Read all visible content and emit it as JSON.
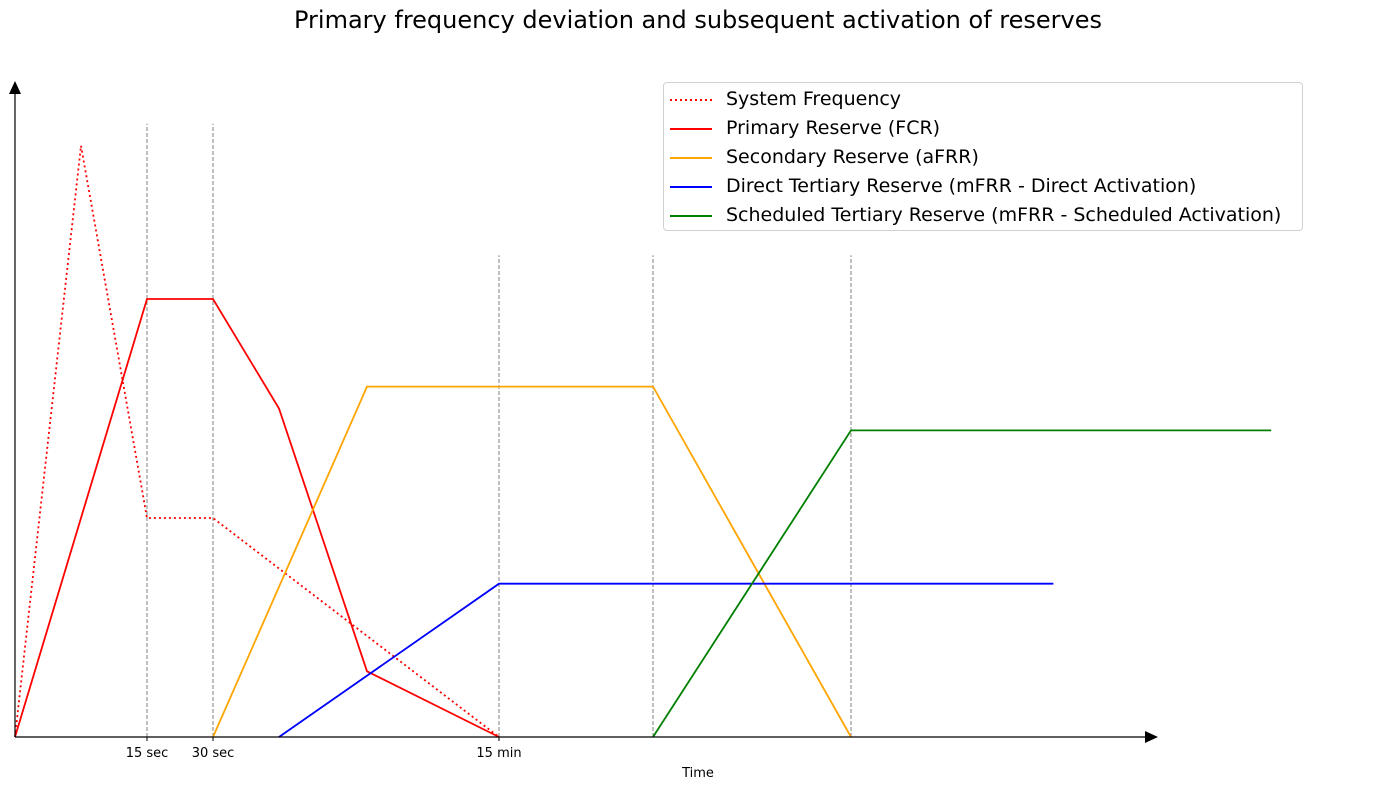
{
  "chart_data": {
    "type": "line",
    "title": "Primary frequency deviation and subsequent activation of reserves",
    "xlabel": "Time",
    "ylabel": "",
    "xlim": [
      0,
      26
    ],
    "ylim": [
      0,
      14.5
    ],
    "x_ticks": [
      {
        "x": 3,
        "label": "15 sec"
      },
      {
        "x": 4.5,
        "label": "30 sec"
      },
      {
        "x": 11,
        "label": "15 min"
      }
    ],
    "vlines": [
      {
        "x": 3,
        "y_top": 14
      },
      {
        "x": 4.5,
        "y_top": 14
      },
      {
        "x": 11,
        "y_top": 11
      },
      {
        "x": 14.5,
        "y_top": 11
      },
      {
        "x": 19,
        "y_top": 11
      }
    ],
    "legend_position": "upper right",
    "grid": false,
    "series": [
      {
        "name": "System Frequency",
        "color": "#ff0000",
        "style": "dotted",
        "points": [
          [
            0,
            0
          ],
          [
            1.5,
            13.5
          ],
          [
            3,
            5
          ],
          [
            4.5,
            5
          ],
          [
            11,
            0
          ]
        ]
      },
      {
        "name": "Primary Reserve (FCR)",
        "color": "#ff0000",
        "style": "solid",
        "points": [
          [
            0,
            0
          ],
          [
            3,
            10
          ],
          [
            4.5,
            10
          ],
          [
            6,
            7.5
          ],
          [
            8,
            1.5
          ],
          [
            11,
            0
          ]
        ]
      },
      {
        "name": "Secondary Reserve (aFRR)",
        "color": "#ffa500",
        "style": "solid",
        "points": [
          [
            4.5,
            0
          ],
          [
            8,
            8
          ],
          [
            14.5,
            8
          ],
          [
            19,
            0
          ]
        ]
      },
      {
        "name": "Direct Tertiary Reserve (mFRR - Direct Activation)",
        "color": "#0000ff",
        "style": "solid",
        "points": [
          [
            6,
            0
          ],
          [
            11,
            3.5
          ],
          [
            23.6,
            3.5
          ]
        ]
      },
      {
        "name": "Scheduled Tertiary Reserve (mFRR - Scheduled Activation)",
        "color": "#008000",
        "style": "solid",
        "points": [
          [
            14.5,
            0
          ],
          [
            19,
            7
          ],
          [
            28.55,
            7
          ]
        ]
      }
    ]
  }
}
